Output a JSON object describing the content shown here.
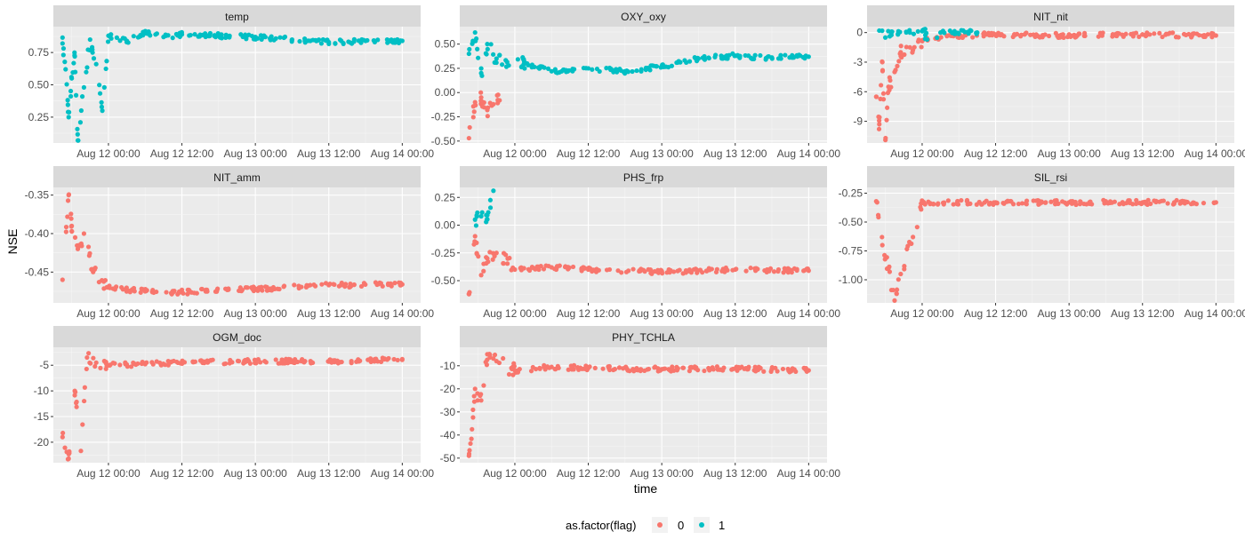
{
  "chart_data": {
    "type": "scatter",
    "facet_by": "variable",
    "x_axis": {
      "title": "time",
      "ticks": [
        "Aug 12 00:00",
        "Aug 12 12:00",
        "Aug 13 00:00",
        "Aug 13 12:00",
        "Aug 14 00:00"
      ],
      "range": [
        "Aug 11 15:00",
        "Aug 14 03:00"
      ]
    },
    "y_axis": {
      "title": "NSE",
      "scales": "free"
    },
    "legend": {
      "title": "as.factor(flag)",
      "position": "bottom",
      "entries": [
        {
          "label": "0",
          "color": "#F8766D"
        },
        {
          "label": "1",
          "color": "#00BFC4"
        }
      ]
    },
    "grid": true,
    "panel_background": "#ebebeb",
    "strip_background": "#d9d9d9",
    "panels": [
      {
        "name": "temp",
        "ylim": [
          0.05,
          0.95
        ],
        "yticks": [
          "0.25",
          "0.50",
          "0.75"
        ],
        "series": [
          {
            "flag": "1",
            "points": [
              [
                "2024-08-11T16:30",
                0.82
              ],
              [
                "2024-08-11T17:00",
                0.62
              ],
              [
                "2024-08-11T17:30",
                0.25
              ],
              [
                "2024-08-11T18:00",
                0.55
              ],
              [
                "2024-08-11T18:30",
                0.72
              ],
              [
                "2024-08-11T19:00",
                0.07
              ],
              [
                "2024-08-11T20:00",
                0.48
              ],
              [
                "2024-08-11T21:00",
                0.85
              ],
              [
                "2024-08-11T22:00",
                0.66
              ],
              [
                "2024-08-11T23:00",
                0.3
              ],
              [
                "2024-08-12T00:00",
                0.88
              ],
              [
                "2024-08-12T03:00",
                0.84
              ],
              [
                "2024-08-12T06:00",
                0.9
              ],
              [
                "2024-08-12T09:00",
                0.87
              ],
              [
                "2024-08-12T12:00",
                0.89
              ],
              [
                "2024-08-12T18:00",
                0.88
              ],
              [
                "2024-08-13T00:00",
                0.87
              ],
              [
                "2024-08-13T06:00",
                0.85
              ],
              [
                "2024-08-13T12:00",
                0.83
              ],
              [
                "2024-08-13T18:00",
                0.84
              ],
              [
                "2024-08-14T00:00",
                0.84
              ]
            ]
          }
        ]
      },
      {
        "name": "OXY_oxy",
        "ylim": [
          -0.52,
          0.68
        ],
        "yticks": [
          "-0.50",
          "-0.25",
          "0.00",
          "0.25",
          "0.50"
        ],
        "series": [
          {
            "flag": "0",
            "points": [
              [
                "2024-08-11T16:30",
                -0.47
              ],
              [
                "2024-08-11T17:30",
                -0.1
              ],
              [
                "2024-08-11T18:30",
                -0.05
              ],
              [
                "2024-08-11T19:30",
                -0.18
              ],
              [
                "2024-08-11T20:30",
                -0.12
              ],
              [
                "2024-08-11T21:30",
                -0.08
              ]
            ]
          },
          {
            "flag": "1",
            "points": [
              [
                "2024-08-11T16:30",
                0.4
              ],
              [
                "2024-08-11T17:30",
                0.62
              ],
              [
                "2024-08-11T18:30",
                0.2
              ],
              [
                "2024-08-11T19:30",
                0.5
              ],
              [
                "2024-08-11T21:00",
                0.35
              ],
              [
                "2024-08-11T23:00",
                0.28
              ],
              [
                "2024-08-12T02:00",
                0.3
              ],
              [
                "2024-08-12T06:00",
                0.22
              ],
              [
                "2024-08-12T12:00",
                0.25
              ],
              [
                "2024-08-12T18:00",
                0.22
              ],
              [
                "2024-08-13T00:00",
                0.27
              ],
              [
                "2024-08-13T06:00",
                0.35
              ],
              [
                "2024-08-13T12:00",
                0.38
              ],
              [
                "2024-08-13T18:00",
                0.36
              ],
              [
                "2024-08-14T00:00",
                0.37
              ]
            ]
          }
        ]
      },
      {
        "name": "NIT_nit",
        "ylim": [
          -11.2,
          0.6
        ],
        "yticks": [
          "-9",
          "-6",
          "-3",
          "0"
        ],
        "series": [
          {
            "flag": "0",
            "points": [
              [
                "2024-08-11T16:30",
                -6.5
              ],
              [
                "2024-08-11T17:00",
                -9.3
              ],
              [
                "2024-08-11T17:30",
                -3.0
              ],
              [
                "2024-08-11T18:00",
                -10.9
              ],
              [
                "2024-08-11T18:30",
                -5.5
              ],
              [
                "2024-08-11T19:30",
                -4.0
              ],
              [
                "2024-08-11T20:30",
                -2.0
              ],
              [
                "2024-08-11T22:00",
                -1.5
              ],
              [
                "2024-08-12T00:00",
                -0.8
              ],
              [
                "2024-08-12T06:00",
                -0.3
              ],
              [
                "2024-08-12T12:00",
                -0.2
              ],
              [
                "2024-08-13T00:00",
                -0.3
              ],
              [
                "2024-08-13T12:00",
                -0.2
              ],
              [
                "2024-08-14T00:00",
                -0.3
              ]
            ]
          },
          {
            "flag": "1",
            "points": [
              [
                "2024-08-11T17:00",
                0.2
              ],
              [
                "2024-08-11T19:00",
                0.1
              ],
              [
                "2024-08-11T22:00",
                0.0
              ],
              [
                "2024-08-12T03:00",
                0.0
              ],
              [
                "2024-08-12T09:00",
                0.0
              ]
            ]
          }
        ]
      },
      {
        "name": "NIT_amm",
        "ylim": [
          -0.49,
          -0.34
        ],
        "yticks": [
          "-0.45",
          "-0.40",
          "-0.35"
        ],
        "series": [
          {
            "flag": "0",
            "points": [
              [
                "2024-08-11T16:30",
                -0.46
              ],
              [
                "2024-08-11T17:30",
                -0.35
              ],
              [
                "2024-08-11T18:00",
                -0.39
              ],
              [
                "2024-08-11T19:00",
                -0.42
              ],
              [
                "2024-08-11T20:00",
                -0.4
              ],
              [
                "2024-08-11T21:30",
                -0.45
              ],
              [
                "2024-08-12T00:00",
                -0.47
              ],
              [
                "2024-08-12T06:00",
                -0.475
              ],
              [
                "2024-08-12T12:00",
                -0.476
              ],
              [
                "2024-08-13T00:00",
                -0.472
              ],
              [
                "2024-08-13T12:00",
                -0.467
              ],
              [
                "2024-08-14T00:00",
                -0.466
              ]
            ]
          }
        ]
      },
      {
        "name": "PHS_frp",
        "ylim": [
          -0.7,
          0.34
        ],
        "yticks": [
          "-0.50",
          "-0.25",
          "0.00",
          "0.25"
        ],
        "series": [
          {
            "flag": "0",
            "points": [
              [
                "2024-08-11T16:30",
                -0.62
              ],
              [
                "2024-08-11T17:30",
                -0.1
              ],
              [
                "2024-08-11T18:30",
                -0.45
              ],
              [
                "2024-08-11T19:30",
                -0.3
              ],
              [
                "2024-08-11T21:00",
                -0.25
              ],
              [
                "2024-08-12T00:00",
                -0.4
              ],
              [
                "2024-08-12T06:00",
                -0.38
              ],
              [
                "2024-08-12T12:00",
                -0.4
              ],
              [
                "2024-08-13T00:00",
                -0.42
              ],
              [
                "2024-08-13T12:00",
                -0.4
              ],
              [
                "2024-08-14T00:00",
                -0.41
              ]
            ]
          },
          {
            "flag": "1",
            "points": [
              [
                "2024-08-11T17:30",
                0.05
              ],
              [
                "2024-08-11T18:30",
                0.08
              ],
              [
                "2024-08-11T19:30",
                0.09
              ],
              [
                "2024-08-11T20:30",
                0.31
              ]
            ]
          }
        ]
      },
      {
        "name": "SIL_rsi",
        "ylim": [
          -1.2,
          -0.2
        ],
        "yticks": [
          "-1.00",
          "-0.75",
          "-0.50",
          "-0.25"
        ],
        "series": [
          {
            "flag": "0",
            "points": [
              [
                "2024-08-11T16:30",
                -0.32
              ],
              [
                "2024-08-11T17:30",
                -0.7
              ],
              [
                "2024-08-11T18:30",
                -0.9
              ],
              [
                "2024-08-11T19:30",
                -1.18
              ],
              [
                "2024-08-11T20:30",
                -0.95
              ],
              [
                "2024-08-11T22:30",
                -0.63
              ],
              [
                "2024-08-12T00:00",
                -0.33
              ],
              [
                "2024-08-12T12:00",
                -0.33
              ],
              [
                "2024-08-13T00:00",
                -0.33
              ],
              [
                "2024-08-13T12:00",
                -0.33
              ],
              [
                "2024-08-14T00:00",
                -0.33
              ]
            ]
          }
        ]
      },
      {
        "name": "OGM_doc",
        "ylim": [
          -24,
          -1.5
        ],
        "yticks": [
          "-20",
          "-15",
          "-10",
          "-5"
        ],
        "series": [
          {
            "flag": "0",
            "points": [
              [
                "2024-08-11T16:30",
                -19.0
              ],
              [
                "2024-08-11T17:30",
                -23.2
              ],
              [
                "2024-08-11T18:30",
                -10.0
              ],
              [
                "2024-08-11T19:30",
                -21.7
              ],
              [
                "2024-08-11T20:30",
                -3.5
              ],
              [
                "2024-08-11T22:00",
                -4.5
              ],
              [
                "2024-08-12T00:00",
                -5.0
              ],
              [
                "2024-08-12T06:00",
                -4.8
              ],
              [
                "2024-08-12T12:00",
                -4.5
              ],
              [
                "2024-08-13T00:00",
                -4.2
              ],
              [
                "2024-08-13T12:00",
                -4.3
              ],
              [
                "2024-08-14T00:00",
                -3.8
              ]
            ]
          }
        ]
      },
      {
        "name": "PHY_TCHLA",
        "ylim": [
          -52,
          -2
        ],
        "yticks": [
          "-50",
          "-40",
          "-30",
          "-20",
          "-10"
        ],
        "series": [
          {
            "flag": "0",
            "points": [
              [
                "2024-08-11T16:30",
                -49.0
              ],
              [
                "2024-08-11T17:00",
                -37.5
              ],
              [
                "2024-08-11T17:30",
                -20.0
              ],
              [
                "2024-08-11T18:30",
                -25.0
              ],
              [
                "2024-08-11T19:30",
                -5.0
              ],
              [
                "2024-08-11T21:00",
                -8.0
              ],
              [
                "2024-08-12T00:00",
                -12.0
              ],
              [
                "2024-08-12T06:00",
                -10.5
              ],
              [
                "2024-08-12T12:00",
                -11.0
              ],
              [
                "2024-08-13T00:00",
                -11.5
              ],
              [
                "2024-08-13T12:00",
                -11.2
              ],
              [
                "2024-08-14T00:00",
                -12.0
              ]
            ]
          }
        ]
      }
    ]
  }
}
